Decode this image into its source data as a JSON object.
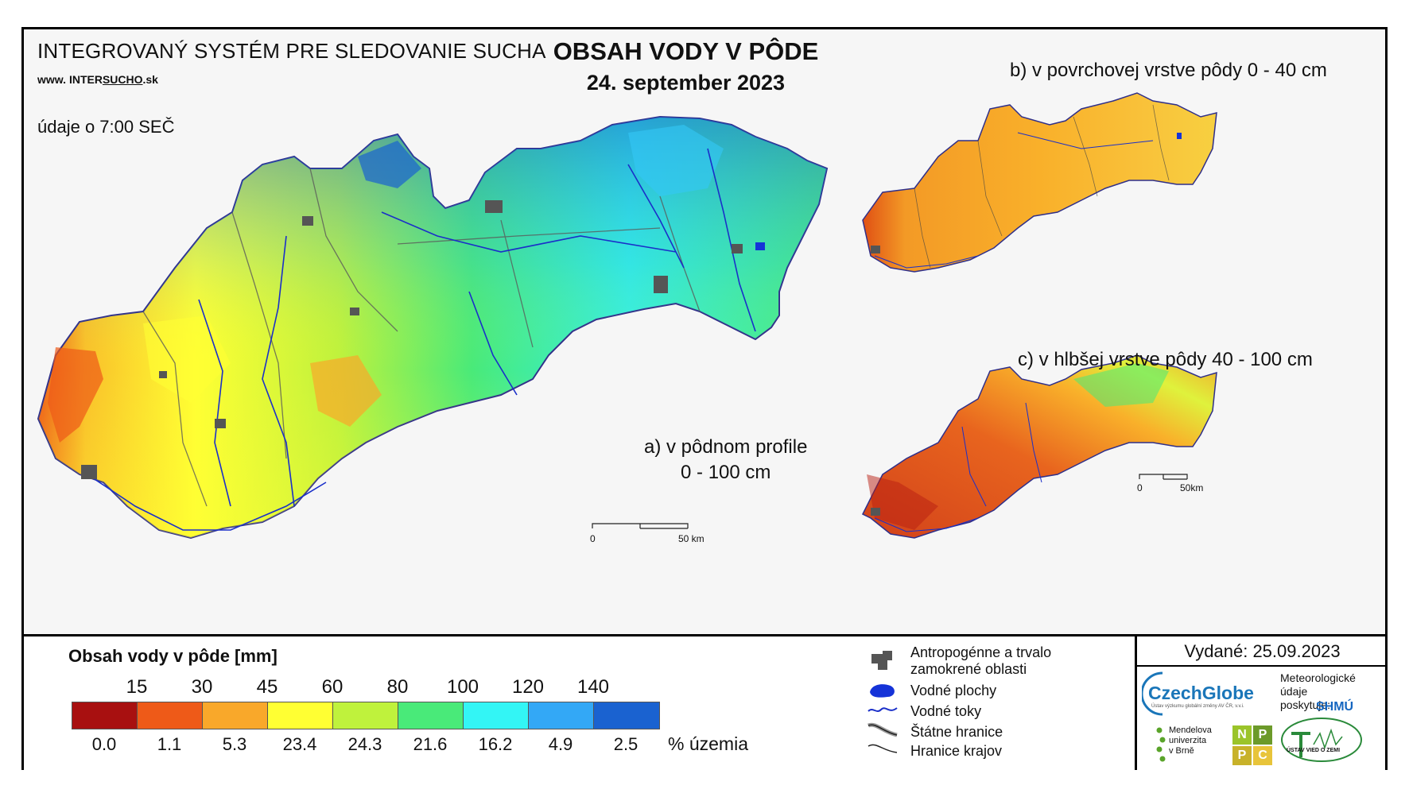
{
  "header": {
    "system_title": "INTEGROVANÝ SYSTÉM PRE SLEDOVANIE SUCHA",
    "url_prefix": "www. ",
    "url_inter": "INTER",
    "url_sucho": "SUCHO",
    "url_suffix": ".sk",
    "observation_time": "údaje o 7:00 SEČ",
    "title": "OBSAH VODY V PÔDE",
    "date": "24. september 2023"
  },
  "maps": {
    "a_label_line1": "a) v pôdnom profile",
    "a_label_line2": "0 - 100 cm",
    "b_label": "b) v povrchovej vrstve pôdy 0 - 40 cm",
    "c_label": "c) v hlbšej vrstve pôdy 40 - 100 cm",
    "scale_zero": "0",
    "scale_main_end": "50 km",
    "scale_small_end": "50km"
  },
  "legend": {
    "title": "Obsah vody v pôde  [mm]",
    "thresholds": [
      "15",
      "30",
      "45",
      "60",
      "80",
      "100",
      "120",
      "140"
    ],
    "classes": [
      {
        "color": "#a81010",
        "percent": "0.0"
      },
      {
        "color": "#ee5a18",
        "percent": "1.1"
      },
      {
        "color": "#f9a82a",
        "percent": "5.3"
      },
      {
        "color": "#ffff33",
        "percent": "23.4"
      },
      {
        "color": "#bff23c",
        "percent": "24.3"
      },
      {
        "color": "#49ea79",
        "percent": "21.6"
      },
      {
        "color": "#33f5f5",
        "percent": "16.2"
      },
      {
        "color": "#33a8f6",
        "percent": "4.9"
      },
      {
        "color": "#1a62d0",
        "percent": "2.5"
      }
    ],
    "percent_label": "% územia"
  },
  "symbols": {
    "anthropogenic_line1": "Antropogénne a trvalo",
    "anthropogenic_line2": "zamokrené oblasti",
    "water_bodies": "Vodné plochy",
    "water_streams": "Vodné toky",
    "state_border": "Štátne hranice",
    "region_border": "Hranice krajov"
  },
  "issued": {
    "text": "Vydané: 25.09.2023",
    "czechglobe": "CzechGlobe",
    "czechglobe_sub": "Ústav výzkumu globální změny AV ČR, v.v.i.",
    "meteo_line1": "Meteorologické",
    "meteo_line2": "údaje",
    "meteo_line3": "poskytuje:",
    "shmu": "SHMÚ",
    "mendel_line1": "Mendelova",
    "mendel_line2": "univerzita",
    "mendel_line3": "v Brně",
    "npc": [
      "N",
      "P",
      "P",
      "C"
    ],
    "uvz": "ÚSTAV VIED O ZEMI"
  }
}
